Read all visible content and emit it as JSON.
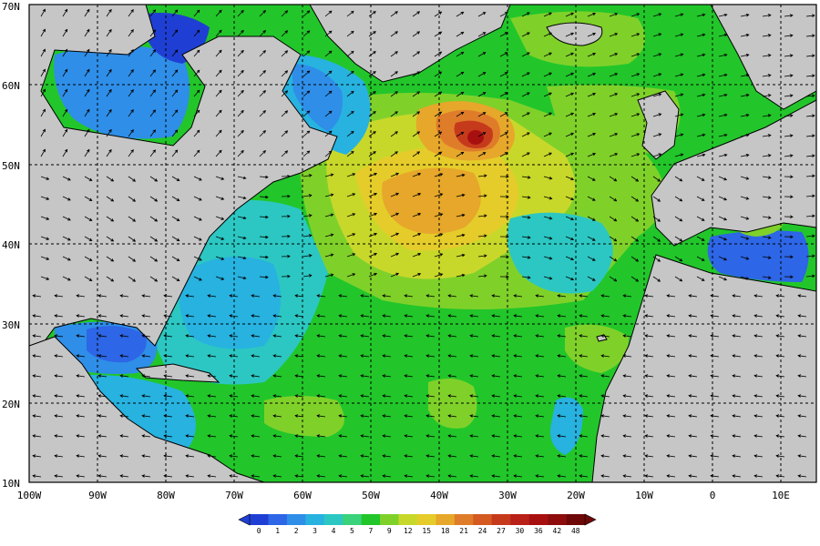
{
  "map": {
    "lat_labels": [
      "70N",
      "60N",
      "50N",
      "40N",
      "30N",
      "20N",
      "10N"
    ],
    "lon_labels": [
      "100W",
      "90W",
      "80W",
      "70W",
      "60W",
      "50W",
      "40W",
      "30W",
      "20W",
      "10W",
      "0",
      "10E"
    ]
  },
  "colorbar": {
    "ticks": [
      "0",
      "1",
      "2",
      "3",
      "4",
      "5",
      "7",
      "9",
      "12",
      "15",
      "18",
      "21",
      "24",
      "27",
      "30",
      "36",
      "42",
      "48"
    ],
    "colors": [
      "#1f3fd4",
      "#2d66e6",
      "#2f8ee8",
      "#27b2e0",
      "#2cc7c2",
      "#3ad27a",
      "#22c62a",
      "#7fd12a",
      "#c8d82a",
      "#e5cc2a",
      "#e6a72a",
      "#df7c2a",
      "#d45a22",
      "#c63a1c",
      "#b82018",
      "#a81010",
      "#8e0c0c",
      "#6e0808"
    ]
  },
  "palette": {
    "land": "#c6c6c6",
    "ocean_base": "#22c62a"
  }
}
